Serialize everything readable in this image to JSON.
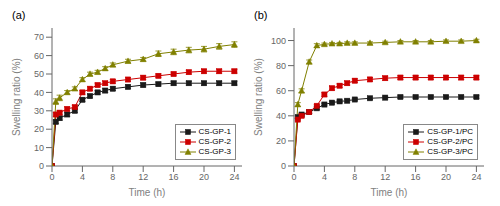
{
  "chart_data": [
    {
      "type": "line",
      "title": "(a)",
      "x_label": "Time (h)",
      "y_label": "Swelling ratio (%)",
      "x": [
        0,
        0.5,
        1,
        2,
        3,
        4,
        5,
        6,
        7,
        8,
        10,
        12,
        14,
        16,
        18,
        20,
        22,
        24
      ],
      "xlim": [
        0,
        25
      ],
      "ylim": [
        0,
        75
      ],
      "xticks": [
        0,
        4,
        8,
        12,
        16,
        20,
        24
      ],
      "yticks": [
        0,
        10,
        20,
        30,
        40,
        50,
        60,
        70
      ],
      "legend": "lower right",
      "grid": false,
      "series": [
        {
          "name": "CS-GP-1",
          "color": "#1a1a1a",
          "marker": "square",
          "values": [
            0,
            24,
            26,
            28,
            30,
            36,
            38,
            40,
            41,
            42,
            43,
            44,
            44.5,
            45,
            45,
            45,
            45,
            45
          ],
          "yerr": [
            0,
            1,
            1,
            1,
            1,
            1,
            1,
            1,
            1,
            1,
            1,
            1,
            1,
            1,
            1,
            1,
            1,
            1
          ]
        },
        {
          "name": "CS-GP-2",
          "color": "#cc0000",
          "marker": "square",
          "values": [
            0,
            28,
            29,
            31,
            32,
            40,
            42,
            44,
            45,
            46,
            47,
            48,
            49,
            50,
            51,
            51.5,
            51.5,
            51.5
          ],
          "yerr": [
            0,
            1,
            1,
            1,
            1,
            1,
            1,
            1,
            1,
            1,
            1,
            1,
            1,
            1,
            1,
            1,
            1,
            1
          ]
        },
        {
          "name": "CS-GP-3",
          "color": "#808000",
          "marker": "triangle",
          "values": [
            0,
            35,
            37,
            40,
            42,
            47,
            50,
            51,
            53,
            55,
            57,
            58,
            61,
            62,
            63,
            63.5,
            65,
            66
          ],
          "yerr": [
            0,
            1.5,
            1.5,
            1,
            1,
            1,
            1,
            1,
            1,
            1,
            1,
            1,
            1.5,
            1.5,
            1.5,
            1.5,
            1.5,
            1.5
          ]
        }
      ]
    },
    {
      "type": "line",
      "title": "(b)",
      "x_label": "Time (h)",
      "y_label": "Swelling ratio (%)",
      "x": [
        0,
        0.5,
        1,
        2,
        3,
        4,
        5,
        6,
        7,
        8,
        10,
        12,
        14,
        16,
        18,
        20,
        22,
        24
      ],
      "xlim": [
        0,
        25
      ],
      "ylim": [
        0,
        110
      ],
      "xticks": [
        0,
        4,
        8,
        12,
        16,
        20,
        24
      ],
      "yticks": [
        0,
        20,
        40,
        60,
        80,
        100
      ],
      "legend": "lower right",
      "grid": false,
      "series": [
        {
          "name": "CS-GP-1/PC",
          "color": "#1a1a1a",
          "marker": "square",
          "values": [
            0,
            39,
            41,
            43,
            46,
            49,
            50.5,
            51.5,
            52,
            53,
            54,
            54.5,
            55,
            55,
            55,
            55,
            55,
            55
          ],
          "yerr": [
            0,
            1,
            1,
            1,
            1,
            1,
            1,
            1,
            1,
            1,
            1,
            1,
            1,
            1,
            1,
            1,
            1,
            1
          ]
        },
        {
          "name": "CS-GP-2/PC",
          "color": "#cc0000",
          "marker": "square",
          "values": [
            0,
            37,
            40,
            43,
            48,
            57,
            62,
            64,
            66,
            68,
            69,
            70,
            70.5,
            70.5,
            70.5,
            70.5,
            70.5,
            70.5
          ],
          "yerr": [
            0,
            1,
            1,
            1,
            1,
            1.5,
            1.5,
            1.5,
            1.5,
            1.5,
            1.5,
            1.5,
            1.5,
            1.5,
            1.5,
            1.5,
            1.5,
            1.5
          ]
        },
        {
          "name": "CS-GP-3/PC",
          "color": "#808000",
          "marker": "triangle",
          "values": [
            0,
            49,
            60,
            83,
            96,
            97,
            97.5,
            97.5,
            98,
            98,
            98,
            98.5,
            99,
            99,
            99,
            99.5,
            99.5,
            100
          ],
          "yerr": [
            0,
            1.5,
            1.5,
            1.5,
            1.5,
            1,
            1,
            1,
            1,
            1,
            1,
            1,
            1,
            1,
            1,
            1,
            1,
            1
          ]
        }
      ]
    }
  ]
}
